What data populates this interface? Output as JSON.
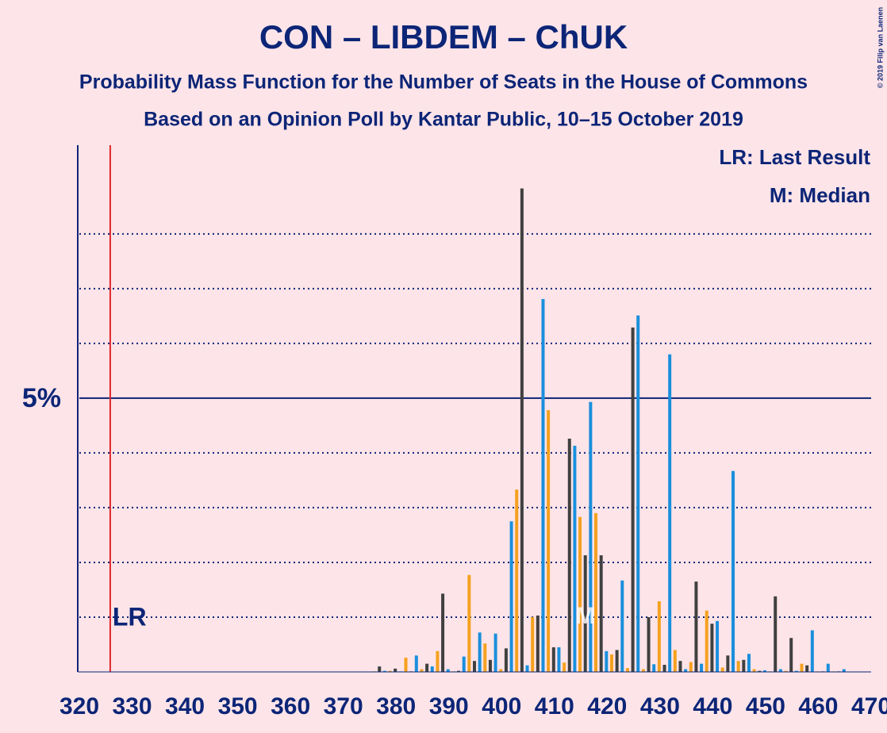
{
  "chart_data": {
    "type": "bar",
    "title": "CON – LIBDEM – ChUK",
    "subtitle": "Probability Mass Function for the Number of Seats in the House of Commons",
    "subtitle2": "Based on an Opinion Poll by Kantar Public, 10–15 October 2019",
    "copyright": "© 2019 Filip van Laenen",
    "legend": [
      "LR: Last Result",
      "M: Median"
    ],
    "last_result": {
      "value": 326,
      "label": "LR"
    },
    "median": {
      "value": 416,
      "label": "M"
    },
    "xlim": [
      320,
      470
    ],
    "xticks": [
      320,
      330,
      340,
      350,
      360,
      370,
      380,
      390,
      400,
      410,
      420,
      430,
      440,
      450,
      460,
      470
    ],
    "ylim": [
      0,
      9.62
    ],
    "yticks": [
      {
        "value": 5,
        "label": "5%"
      }
    ],
    "minor_grid": [
      1,
      2,
      3,
      4,
      6,
      7,
      8
    ],
    "series": [
      {
        "color": "#404040",
        "x": [
          377,
          380,
          383,
          386,
          389,
          392,
          395,
          398,
          401,
          404,
          407,
          410,
          413,
          416,
          419,
          422,
          425,
          428,
          431,
          434,
          437,
          440,
          443,
          446,
          449,
          452,
          455,
          458,
          461,
          464
        ],
        "values": [
          0.1,
          0.06,
          0.01,
          0.15,
          1.43,
          0.02,
          0.2,
          0.22,
          0.43,
          8.83,
          1.03,
          0.45,
          4.26,
          2.13,
          2.13,
          0.4,
          6.29,
          1.0,
          0.13,
          0.2,
          1.65,
          0.88,
          0.3,
          0.22,
          0.02,
          1.38,
          0.62,
          0.12,
          0.01,
          0.01
        ]
      },
      {
        "color": "#1a8fdc",
        "x": [
          378,
          381,
          384,
          387,
          390,
          393,
          396,
          399,
          402,
          405,
          408,
          411,
          414,
          417,
          420,
          423,
          426,
          429,
          432,
          435,
          438,
          441,
          444,
          447,
          450,
          453,
          456,
          459,
          462,
          465
        ],
        "values": [
          0.02,
          0.01,
          0.3,
          0.1,
          0.05,
          0.28,
          0.72,
          0.7,
          2.75,
          0.12,
          6.81,
          0.45,
          4.13,
          4.93,
          0.38,
          1.67,
          6.51,
          0.14,
          5.8,
          0.05,
          0.15,
          0.93,
          3.67,
          0.33,
          0.03,
          0.05,
          0.02,
          0.76,
          0.15,
          0.05
        ]
      },
      {
        "color": "#f5a11f",
        "x": [
          376,
          379,
          382,
          385,
          388,
          391,
          394,
          397,
          400,
          403,
          406,
          409,
          412,
          415,
          418,
          421,
          424,
          427,
          430,
          433,
          436,
          439,
          442,
          445,
          448,
          451,
          454,
          457,
          460,
          463
        ],
        "values": [
          0.01,
          0.02,
          0.26,
          0.05,
          0.38,
          0.01,
          1.77,
          0.52,
          0.05,
          3.33,
          1.0,
          4.78,
          0.17,
          2.83,
          2.9,
          0.32,
          0.07,
          0.05,
          1.29,
          0.4,
          0.18,
          1.12,
          0.08,
          0.2,
          0.05,
          0.01,
          0.02,
          0.15,
          0.01,
          0.01
        ]
      }
    ]
  }
}
